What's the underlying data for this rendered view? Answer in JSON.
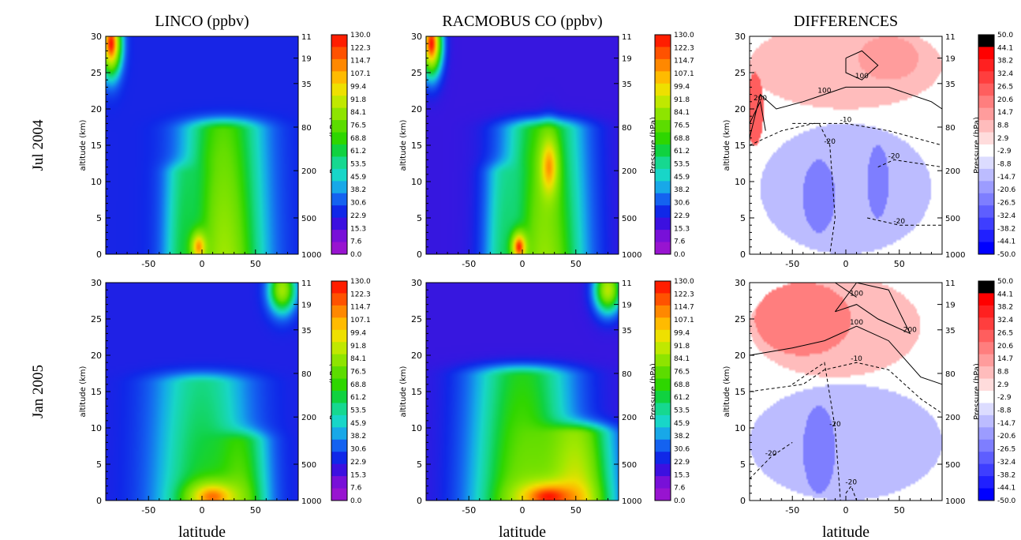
{
  "columns": [
    "LINCO (ppbv)",
    "RACMOBUS CO (ppbv)",
    "DIFFERENCES"
  ],
  "rows": [
    "Jul 2004",
    "Jan 2005"
  ],
  "common": {
    "xlabel": "latitude",
    "ylabel": "altitude (km)",
    "right_axis_label": "Pressure (hPa)",
    "x_ticks": [
      "-50",
      "0",
      "50"
    ],
    "y_ticks": [
      "0",
      "5",
      "10",
      "15",
      "20",
      "25",
      "30"
    ],
    "pressure_ticks": [
      "1000",
      "500",
      "200",
      "80",
      "35",
      "19",
      "11"
    ]
  },
  "colorbars": {
    "concentration": {
      "labels": [
        "130.0",
        "122.3",
        "114.7",
        "107.1",
        "99.4",
        "91.8",
        "84.1",
        "76.5",
        "68.8",
        "61.2",
        "53.5",
        "45.9",
        "38.2",
        "30.6",
        "22.9",
        "15.3",
        "7.6",
        "0.0"
      ],
      "colors": [
        "#ff1e00",
        "#ff5200",
        "#ff8800",
        "#ffbb00",
        "#eee000",
        "#c0e800",
        "#8ee400",
        "#5cdc00",
        "#2ed600",
        "#10d240",
        "#16d890",
        "#18d6c8",
        "#18a8e8",
        "#1462f0",
        "#1028e8",
        "#3c10e0",
        "#7810d8",
        "#9814d0"
      ]
    },
    "difference": {
      "labels": [
        "50.0",
        "44.1",
        "38.2",
        "32.4",
        "26.5",
        "20.6",
        "14.7",
        "8.8",
        "2.9",
        "-2.9",
        "-8.8",
        "-14.7",
        "-20.6",
        "-26.5",
        "-32.4",
        "-38.2",
        "-44.1",
        "-50.0"
      ],
      "colors": [
        "#000000",
        "#ff0000",
        "#ff2020",
        "#ff3e3e",
        "#ff5e5e",
        "#ff7e7e",
        "#ff9c9c",
        "#ffbcbc",
        "#ffdcdc",
        "#ffffff",
        "#dcdcff",
        "#bcbcff",
        "#9c9cff",
        "#7e7eff",
        "#5e5eff",
        "#3e3eff",
        "#2020ff",
        "#0000ff"
      ]
    }
  },
  "chart_data": [
    {
      "type": "heatmap",
      "panel": "LINCO Jul 2004",
      "column": "LINCO (ppbv)",
      "row": "Jul 2004",
      "xlim": [
        -90,
        90
      ],
      "ylim": [
        0,
        30
      ],
      "zlim": [
        0,
        130
      ],
      "background": 14,
      "features": [
        {
          "kind": "plume",
          "lat": 20,
          "w": 45,
          "z0": 0,
          "z1": 17,
          "value": 85
        },
        {
          "kind": "plume",
          "lat": -15,
          "w": 22,
          "z0": 0,
          "z1": 11,
          "value": 55
        },
        {
          "kind": "blob",
          "lat": -3,
          "alt": 1,
          "rlat": 7,
          "ralt": 2,
          "value": 115
        },
        {
          "kind": "blob",
          "lat": -85,
          "alt": 29,
          "rlat": 9,
          "ralt": 4,
          "value": 130
        }
      ]
    },
    {
      "type": "heatmap",
      "panel": "RACMOBUS Jul 2004",
      "column": "RACMOBUS CO (ppbv)",
      "row": "Jul 2004",
      "xlim": [
        -90,
        90
      ],
      "ylim": [
        0,
        30
      ],
      "zlim": [
        0,
        130
      ],
      "background": 10,
      "features": [
        {
          "kind": "plume",
          "lat": 20,
          "w": 45,
          "z0": 0,
          "z1": 17,
          "value": 82
        },
        {
          "kind": "plume",
          "lat": -15,
          "w": 22,
          "z0": 0,
          "z1": 11,
          "value": 50
        },
        {
          "kind": "blob",
          "lat": 25,
          "alt": 12,
          "rlat": 8,
          "ralt": 4,
          "value": 115
        },
        {
          "kind": "blob",
          "lat": -3,
          "alt": 1,
          "rlat": 7,
          "ralt": 2,
          "value": 128
        },
        {
          "kind": "blob",
          "lat": -85,
          "alt": 29,
          "rlat": 9,
          "ralt": 4,
          "value": 130
        }
      ]
    },
    {
      "type": "heatmap",
      "panel": "DIFFERENCES Jul 2004",
      "column": "DIFFERENCES",
      "row": "Jul 2004",
      "xlim": [
        -90,
        90
      ],
      "ylim": [
        0,
        30
      ],
      "zlim": [
        -50,
        50
      ],
      "background": 0,
      "regions": [
        {
          "lat": 0,
          "alt": 26,
          "rlat": 90,
          "ralt": 6,
          "value": 10
        },
        {
          "lat": 40,
          "alt": 27,
          "rlat": 28,
          "ralt": 3,
          "value": 20
        },
        {
          "lat": -85,
          "alt": 20,
          "rlat": 8,
          "ralt": 5,
          "value": 28
        },
        {
          "lat": 0,
          "alt": 9,
          "rlat": 80,
          "ralt": 9,
          "value": -10
        },
        {
          "lat": -25,
          "alt": 8,
          "rlat": 15,
          "ralt": 5,
          "value": -22
        },
        {
          "lat": 30,
          "alt": 10,
          "rlat": 10,
          "ralt": 5,
          "value": -22
        }
      ],
      "contours": [
        {
          "value": 100,
          "style": "solid",
          "points": [
            [
              -90,
              16
            ],
            [
              -80,
              22
            ],
            [
              -65,
              20
            ],
            [
              -40,
              21
            ],
            [
              -20,
              22
            ],
            [
              0,
              23
            ],
            [
              40,
              23
            ],
            [
              80,
              21
            ],
            [
              90,
              20
            ]
          ]
        },
        {
          "value": 200,
          "style": "solid",
          "points": [
            [
              -90,
              18
            ],
            [
              -80,
              21
            ],
            [
              -75,
              17
            ]
          ]
        },
        {
          "value": 100,
          "style": "solid",
          "points": [
            [
              0,
              27
            ],
            [
              15,
              28
            ],
            [
              30,
              26
            ],
            [
              15,
              24
            ],
            [
              0,
              25
            ],
            [
              0,
              27
            ]
          ]
        },
        {
          "value": -10,
          "style": "dashed",
          "points": [
            [
              -90,
              15
            ],
            [
              -60,
              17
            ],
            [
              -30,
              18
            ],
            [
              0,
              18
            ],
            [
              40,
              17
            ],
            [
              90,
              15
            ]
          ]
        },
        {
          "value": -20,
          "style": "dashed",
          "points": [
            [
              -50,
              18
            ],
            [
              -25,
              18
            ],
            [
              -15,
              15
            ],
            [
              -10,
              5
            ],
            [
              -15,
              0
            ]
          ]
        },
        {
          "value": -20,
          "style": "dashed",
          "points": [
            [
              30,
              12
            ],
            [
              45,
              13
            ],
            [
              90,
              12
            ]
          ]
        },
        {
          "value": -20,
          "style": "dashed",
          "points": [
            [
              20,
              5
            ],
            [
              50,
              4
            ],
            [
              90,
              4
            ]
          ]
        }
      ]
    },
    {
      "type": "heatmap",
      "panel": "LINCO Jan 2005",
      "column": "LINCO (ppbv)",
      "row": "Jan 2005",
      "xlim": [
        -90,
        90
      ],
      "ylim": [
        0,
        30
      ],
      "zlim": [
        0,
        130
      ],
      "background": 13,
      "features": [
        {
          "kind": "plume",
          "lat": 0,
          "w": 55,
          "z0": 0,
          "z1": 16,
          "value": 58
        },
        {
          "kind": "plume",
          "lat": 35,
          "w": 30,
          "z0": 0,
          "z1": 8,
          "value": 72
        },
        {
          "kind": "blob",
          "lat": 10,
          "alt": 0.5,
          "rlat": 22,
          "ralt": 2,
          "value": 120
        },
        {
          "kind": "blob",
          "lat": 75,
          "alt": 29,
          "rlat": 12,
          "ralt": 3,
          "value": 85
        }
      ]
    },
    {
      "type": "heatmap",
      "panel": "RACMOBUS Jan 2005",
      "column": "RACMOBUS CO (ppbv)",
      "row": "Jan 2005",
      "xlim": [
        -90,
        90
      ],
      "ylim": [
        0,
        30
      ],
      "zlim": [
        0,
        130
      ],
      "background": 10,
      "features": [
        {
          "kind": "plume",
          "lat": 0,
          "w": 58,
          "z0": 0,
          "z1": 17,
          "value": 75
        },
        {
          "kind": "plume",
          "lat": 50,
          "w": 40,
          "z0": 0,
          "z1": 9,
          "value": 100
        },
        {
          "kind": "blob",
          "lat": 25,
          "alt": 0.5,
          "rlat": 28,
          "ralt": 2,
          "value": 130
        },
        {
          "kind": "blob",
          "lat": 80,
          "alt": 29,
          "rlat": 12,
          "ralt": 3,
          "value": 90
        }
      ]
    },
    {
      "type": "heatmap",
      "panel": "DIFFERENCES Jan 2005",
      "column": "DIFFERENCES",
      "row": "Jan 2005",
      "xlim": [
        -90,
        90
      ],
      "ylim": [
        0,
        30
      ],
      "zlim": [
        -50,
        50
      ],
      "background": 0,
      "regions": [
        {
          "lat": -10,
          "alt": 24,
          "rlat": 80,
          "ralt": 7,
          "value": 12
        },
        {
          "lat": -40,
          "alt": 25,
          "rlat": 45,
          "ralt": 5,
          "value": 22
        },
        {
          "lat": 0,
          "alt": 8,
          "rlat": 90,
          "ralt": 8,
          "value": -10
        },
        {
          "lat": -25,
          "alt": 7,
          "rlat": 15,
          "ralt": 6,
          "value": -22
        }
      ],
      "contours": [
        {
          "value": 100,
          "style": "solid",
          "points": [
            [
              -90,
              20
            ],
            [
              -50,
              21
            ],
            [
              -20,
              22
            ],
            [
              10,
              24
            ],
            [
              40,
              22
            ],
            [
              70,
              17
            ],
            [
              90,
              16
            ]
          ]
        },
        {
          "value": 200,
          "style": "solid",
          "points": [
            [
              -10,
              26
            ],
            [
              10,
              30
            ],
            [
              40,
              29
            ],
            [
              60,
              23
            ],
            [
              30,
              25
            ],
            [
              10,
              27
            ],
            [
              -10,
              26
            ]
          ]
        },
        {
          "value": 100,
          "style": "solid",
          "points": [
            [
              -10,
              30
            ],
            [
              10,
              28
            ]
          ]
        },
        {
          "value": -10,
          "style": "dashed",
          "points": [
            [
              -90,
              15
            ],
            [
              -40,
              16
            ],
            [
              -20,
              18
            ],
            [
              10,
              19
            ],
            [
              40,
              18
            ],
            [
              70,
              14
            ],
            [
              90,
              12
            ]
          ]
        },
        {
          "value": -20,
          "style": "dashed",
          "points": [
            [
              -50,
              16
            ],
            [
              -20,
              19
            ],
            [
              -10,
              10
            ],
            [
              -5,
              0
            ]
          ]
        },
        {
          "value": -20,
          "style": "dashed",
          "points": [
            [
              -90,
              3
            ],
            [
              -70,
              6
            ],
            [
              -50,
              8
            ]
          ]
        },
        {
          "value": -20,
          "style": "dashed",
          "points": [
            [
              0,
              1
            ],
            [
              5,
              2
            ],
            [
              10,
              0
            ]
          ]
        }
      ]
    }
  ]
}
